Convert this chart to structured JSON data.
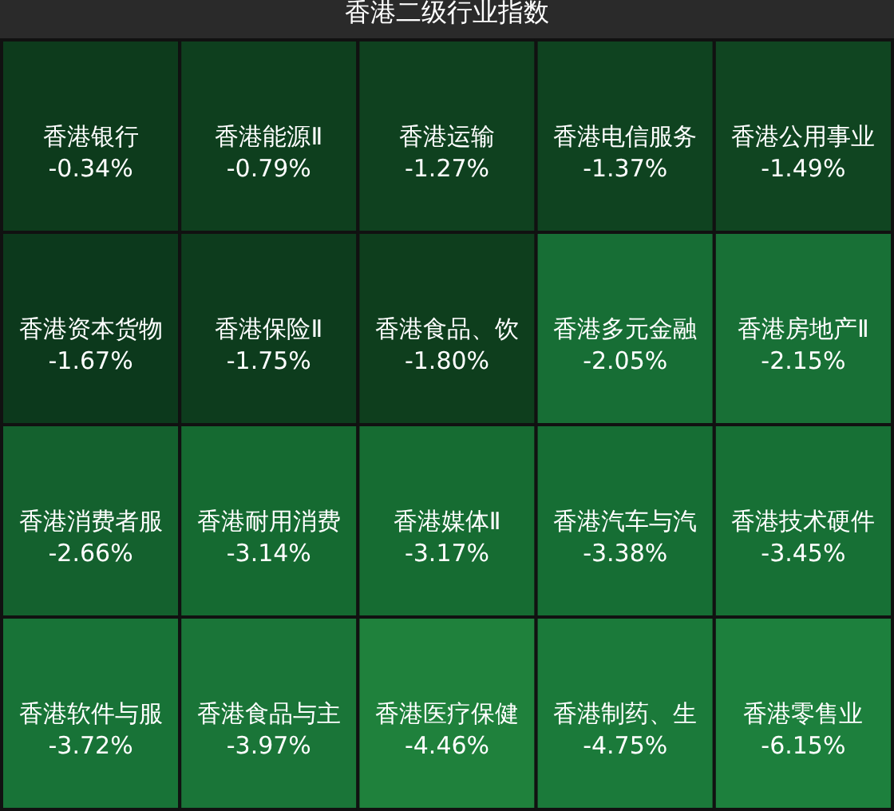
{
  "chart_data": {
    "type": "heatmap",
    "title": "香港二级行业指数",
    "categories": [
      null,
      null,
      null,
      null,
      null
    ],
    "y_categories": [
      null,
      null,
      null,
      null
    ],
    "cells": [
      [
        -0.34,
        -0.79,
        -1.27,
        -1.37,
        -1.49
      ],
      [
        -1.67,
        -1.75,
        -1.8,
        -2.05,
        -2.15
      ],
      [
        -2.66,
        -3.14,
        -3.17,
        -3.38,
        -3.45
      ],
      [
        -3.72,
        -3.97,
        -4.46,
        -4.75,
        -6.15
      ]
    ],
    "cell_labels": [
      [
        "香港银行\n-0.34%",
        "香港能源Ⅱ\n-0.79%",
        "香港运输\n-1.27%",
        "香港电信服务\n-1.37%",
        "香港公用事业\n-1.49%"
      ],
      [
        "香港资本货物\n-1.67%",
        "香港保险Ⅱ\n-1.75%",
        "香港食品、饮\n-1.80%",
        "香港多元金融\n-2.05%",
        "香港房地产Ⅱ\n-2.15%"
      ],
      [
        "香港消费者服\n-2.66%",
        "香港耐用消费\n-3.14%",
        "香港媒体Ⅱ\n-3.17%",
        "香港汽车与汽\n-3.38%",
        "香港技术硬件\n-3.45%"
      ],
      [
        "香港软件与服\n-3.72%",
        "香港食品与主\n-3.97%",
        "香港医疗保健\n-4.46%",
        "香港制药、生\n-4.75%",
        "香港零售业\n-6.15%"
      ]
    ],
    "colors": [
      [
        "#0f4521",
        "#104822",
        "#114a23",
        "#114c24",
        "#124e25"
      ],
      [
        "#0e401f",
        "#0f4320",
        "#104521",
        "#1a7a3b",
        "#1b7c3c"
      ],
      [
        "#166a32",
        "#177235",
        "#187436",
        "#187638",
        "#197839"
      ],
      [
        "#1a7a3a",
        "#1b7c3b",
        "#20873f",
        "#1c7e3c",
        "#1d803d"
      ]
    ]
  }
}
